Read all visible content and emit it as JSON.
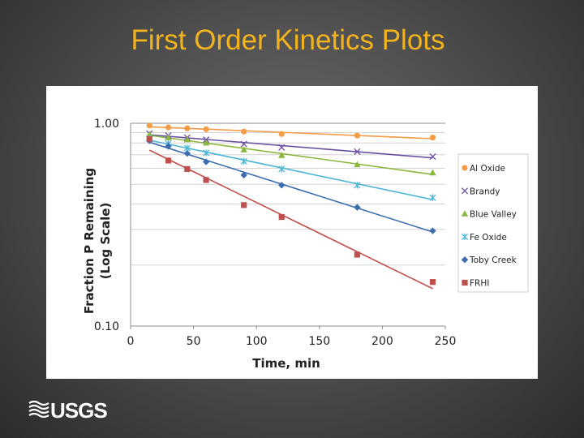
{
  "slide": {
    "title": "First Order Kinetics Plots",
    "title_color": "#f2b31c",
    "logo_text": "USGS"
  },
  "chart_data": {
    "type": "scatter",
    "title": "",
    "xlabel": "Time, min",
    "ylabel_line1": "Fraction P Remaining",
    "ylabel_line2": "(Log Scale)",
    "xlim": [
      0,
      250
    ],
    "ylim": [
      0.1,
      1.0
    ],
    "y_scale": "log",
    "x_ticks": [
      "0",
      "50",
      "100",
      "150",
      "200",
      "250"
    ],
    "y_ticks": [
      "0.10",
      "1.00"
    ],
    "grid": true,
    "legend_position": "right",
    "trendlines": "linear in log-space (exponential fit) for each series",
    "x": [
      15,
      30,
      45,
      60,
      90,
      120,
      180,
      240
    ],
    "series": [
      {
        "name": "Al Oxide",
        "color": "#f39b45",
        "marker": "circle",
        "values": [
          0.975,
          0.955,
          0.945,
          0.935,
          0.91,
          0.885,
          0.87,
          0.85
        ]
      },
      {
        "name": "Brandy",
        "color": "#6a4fa0",
        "marker": "x",
        "values": [
          0.89,
          0.87,
          0.85,
          0.83,
          0.79,
          0.76,
          0.725,
          0.685
        ]
      },
      {
        "name": "Blue Valley",
        "color": "#8ab83f",
        "marker": "triangle",
        "values": [
          0.88,
          0.85,
          0.83,
          0.8,
          0.74,
          0.695,
          0.625,
          0.57
        ]
      },
      {
        "name": "Fe Oxide",
        "color": "#4bb5d8",
        "marker": "star",
        "values": [
          0.84,
          0.795,
          0.755,
          0.715,
          0.65,
          0.595,
          0.495,
          0.43
        ]
      },
      {
        "name": "Toby Creek",
        "color": "#3c6eb0",
        "marker": "diamond",
        "values": [
          0.82,
          0.77,
          0.71,
          0.645,
          0.555,
          0.495,
          0.385,
          0.295
        ]
      },
      {
        "name": "FRHI",
        "color": "#c0504d",
        "marker": "square",
        "values": [
          0.835,
          0.655,
          0.595,
          0.525,
          0.395,
          0.345,
          0.225,
          0.165
        ]
      }
    ]
  }
}
